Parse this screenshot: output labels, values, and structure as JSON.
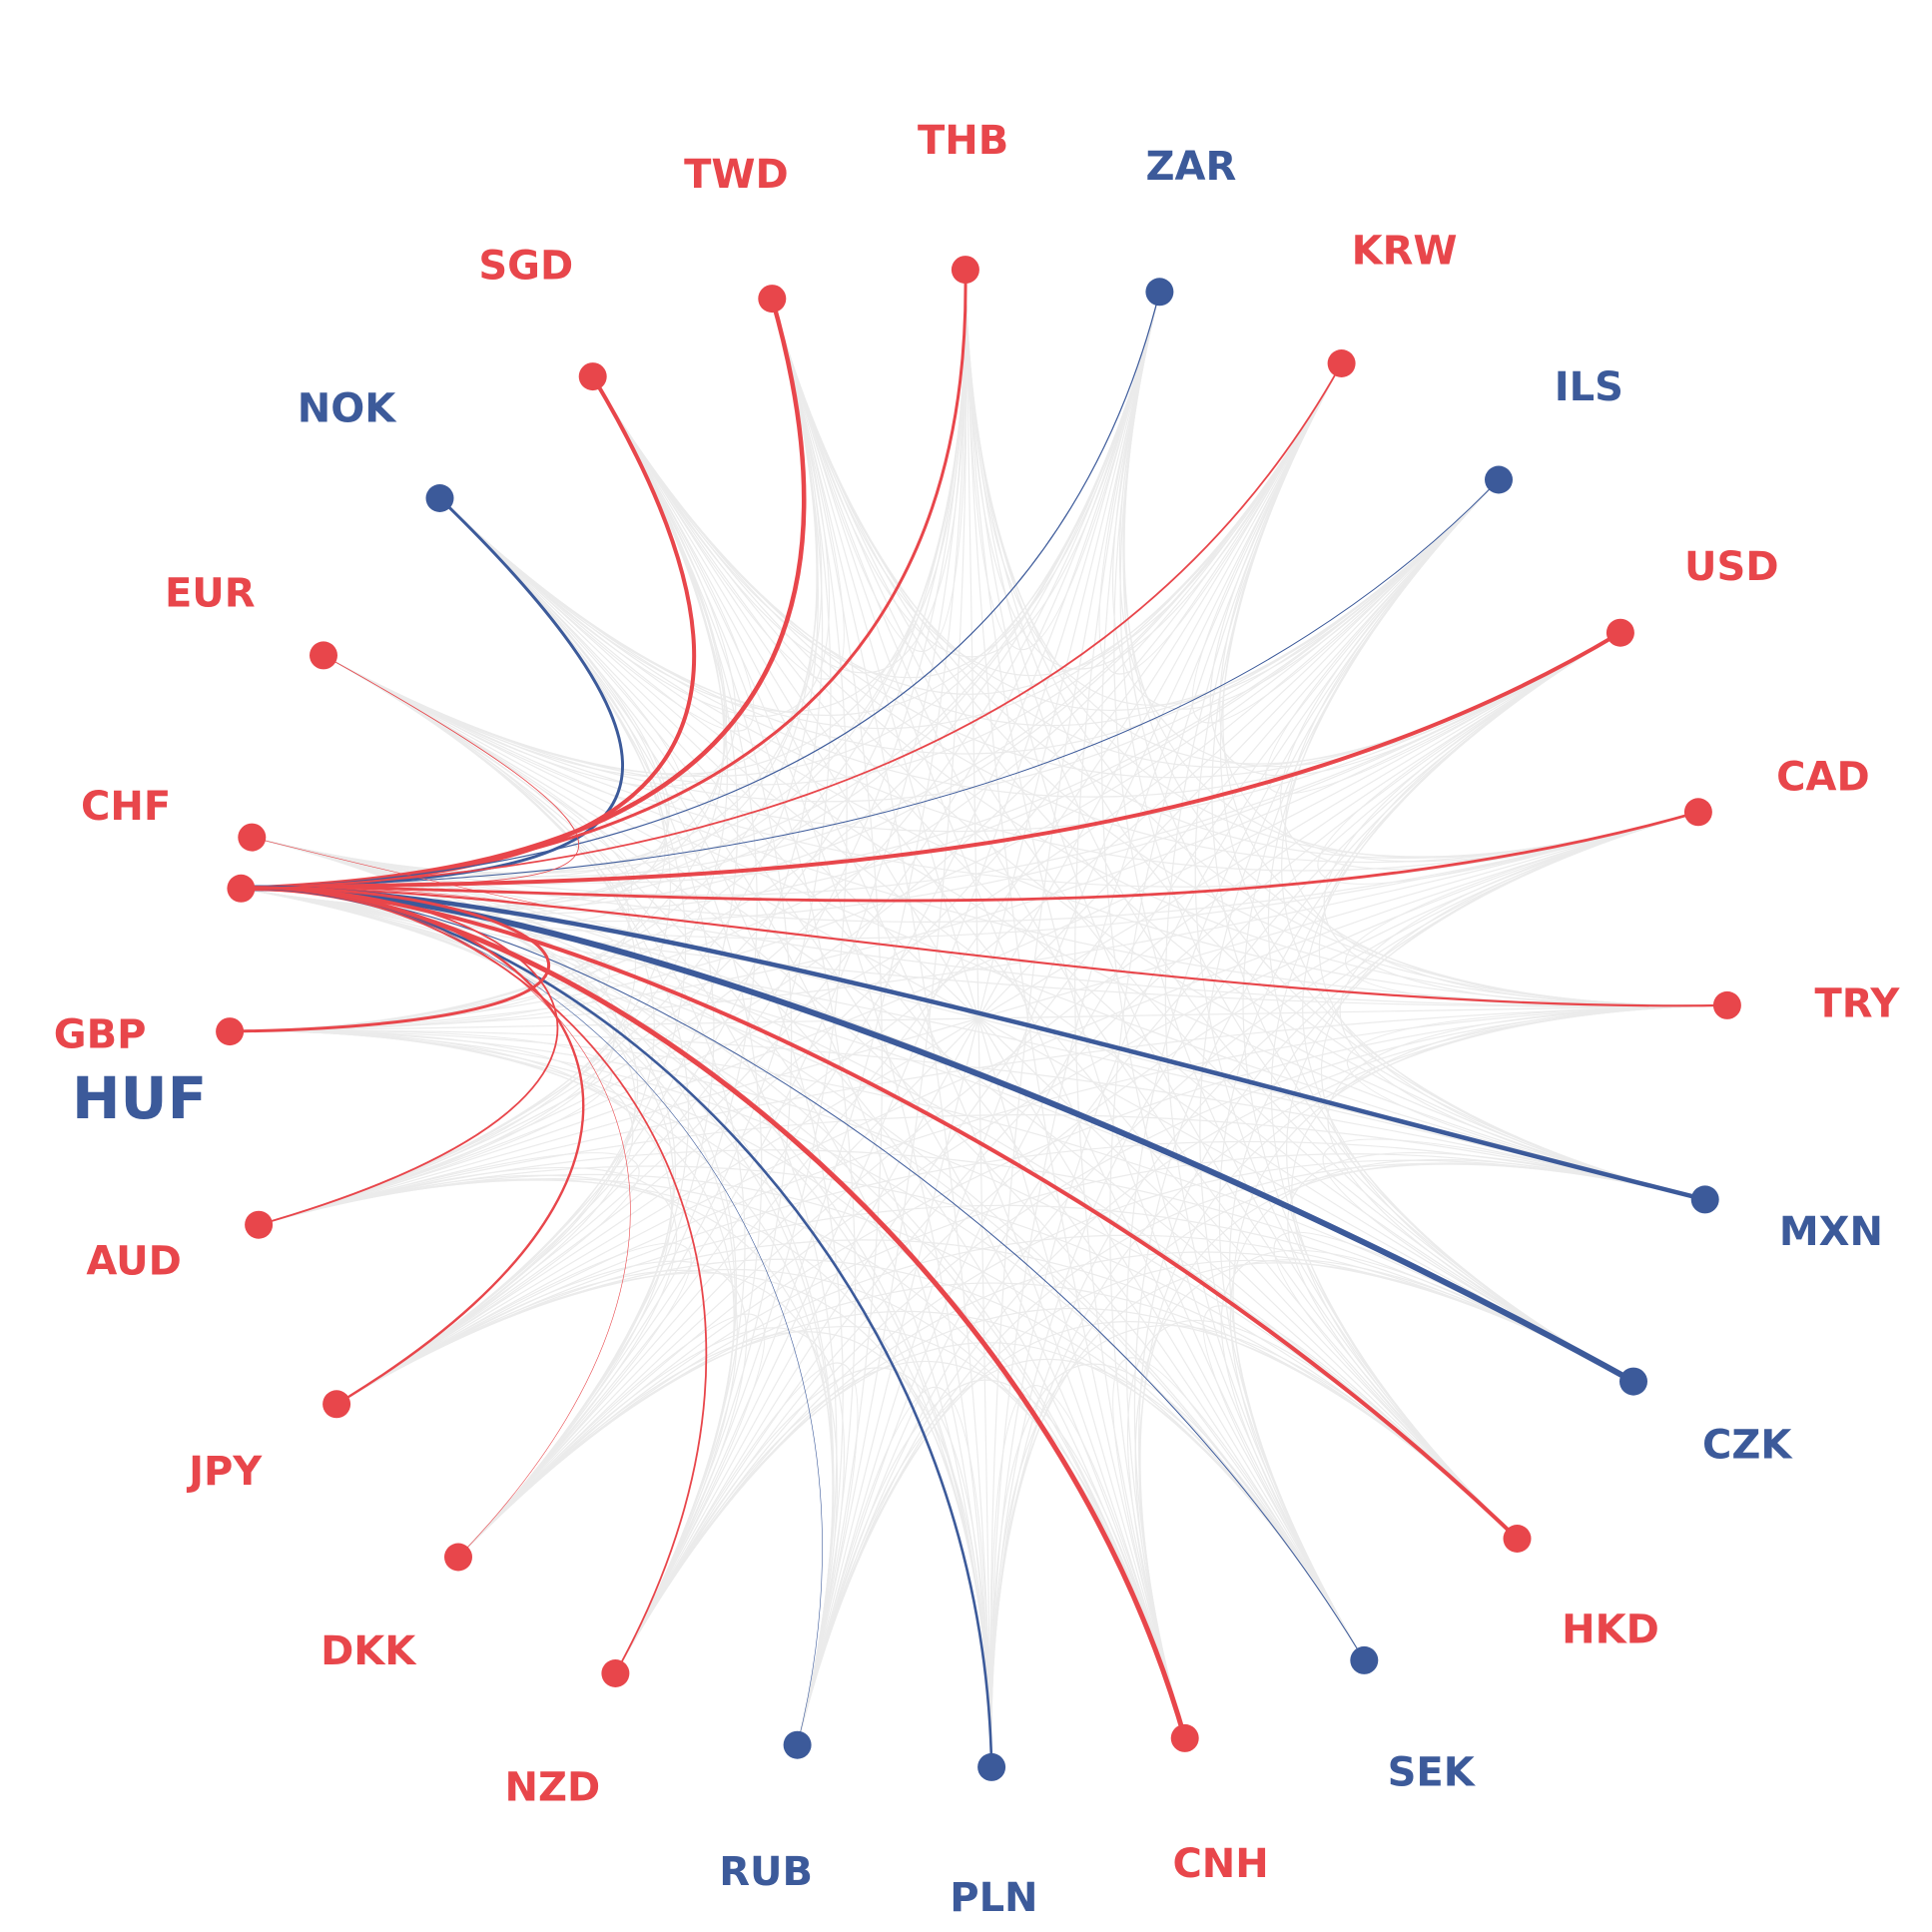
{
  "colors": {
    "red": "#e8464b",
    "blue": "#3c5a9a",
    "background_edges": "#ebebeb"
  },
  "hub": {
    "code": "HUF",
    "color": "blue"
  },
  "nodes": [
    {
      "code": "NOK",
      "color": "blue",
      "weight": 3.0
    },
    {
      "code": "SGD",
      "color": "red",
      "weight": 4.0
    },
    {
      "code": "TWD",
      "color": "red",
      "weight": 4.5
    },
    {
      "code": "THB",
      "color": "red",
      "weight": 3.0
    },
    {
      "code": "ZAR",
      "color": "blue",
      "weight": 1.2
    },
    {
      "code": "KRW",
      "color": "red",
      "weight": 1.8
    },
    {
      "code": "ILS",
      "color": "blue",
      "weight": 1.0
    },
    {
      "code": "USD",
      "color": "red",
      "weight": 4.0
    },
    {
      "code": "CAD",
      "color": "red",
      "weight": 2.8
    },
    {
      "code": "TRY",
      "color": "red",
      "weight": 2.2
    },
    {
      "code": "MXN",
      "color": "blue",
      "weight": 4.5
    },
    {
      "code": "CZK",
      "color": "blue",
      "weight": 6.0
    },
    {
      "code": "HKD",
      "color": "red",
      "weight": 4.0
    },
    {
      "code": "SEK",
      "color": "blue",
      "weight": 1.0
    },
    {
      "code": "CNH",
      "color": "red",
      "weight": 5.0
    },
    {
      "code": "PLN",
      "color": "blue",
      "weight": 2.6
    },
    {
      "code": "RUB",
      "color": "blue",
      "weight": 0.6
    },
    {
      "code": "NZD",
      "color": "red",
      "weight": 1.8
    },
    {
      "code": "DKK",
      "color": "red",
      "weight": 0.6
    },
    {
      "code": "JPY",
      "color": "red",
      "weight": 2.4
    },
    {
      "code": "AUD",
      "color": "red",
      "weight": 1.8
    },
    {
      "code": "GBP",
      "color": "red",
      "weight": 3.0
    },
    {
      "code": "CHF",
      "color": "red",
      "weight": 0.6
    },
    {
      "code": "EUR",
      "color": "red",
      "weight": 0.8
    }
  ]
}
